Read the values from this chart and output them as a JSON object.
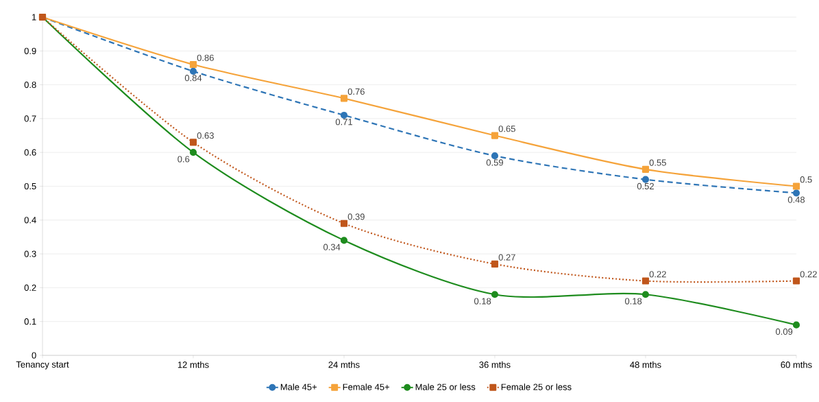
{
  "chart_data": {
    "type": "line",
    "categories": [
      "Tenancy start",
      "12 mths",
      "24 mths",
      "36 mths",
      "48 mths",
      "60 mths"
    ],
    "ylim": [
      0,
      1
    ],
    "yticks": [
      0,
      0.1,
      0.2,
      0.3,
      0.4,
      0.5,
      0.6,
      0.7,
      0.8,
      0.9,
      1
    ],
    "grid": "y",
    "legend": "bottom",
    "series": [
      {
        "name": "Male 45+",
        "color": "#2e75b6",
        "marker": "circle",
        "line_style": "dashed",
        "values": [
          1,
          0.84,
          0.71,
          0.59,
          0.52,
          0.48
        ],
        "value_labels": [
          null,
          "0.84",
          "0.71",
          "0.59",
          "0.52",
          "0.48"
        ]
      },
      {
        "name": "Female 45+",
        "color": "#f5a33a",
        "marker": "square",
        "line_style": "solid",
        "values": [
          1,
          0.86,
          0.76,
          0.65,
          0.55,
          0.5
        ],
        "value_labels": [
          null,
          "0.86",
          "0.76",
          "0.65",
          "0.55",
          "0.5"
        ]
      },
      {
        "name": "Male 25 or less",
        "color": "#1e8c1e",
        "marker": "circle",
        "line_style": "solid",
        "values": [
          1,
          0.6,
          0.34,
          0.18,
          0.18,
          0.09
        ],
        "value_labels": [
          null,
          "0.6",
          "0.34",
          "0.18",
          "0.18",
          "0.09"
        ]
      },
      {
        "name": "Female 25 or less",
        "color": "#c0561b",
        "marker": "square",
        "line_style": "dotted",
        "values": [
          1,
          0.63,
          0.39,
          0.27,
          0.22,
          0.22
        ],
        "value_labels": [
          null,
          "0.63",
          "0.39",
          "0.27",
          "0.22",
          "0.22"
        ]
      }
    ]
  }
}
